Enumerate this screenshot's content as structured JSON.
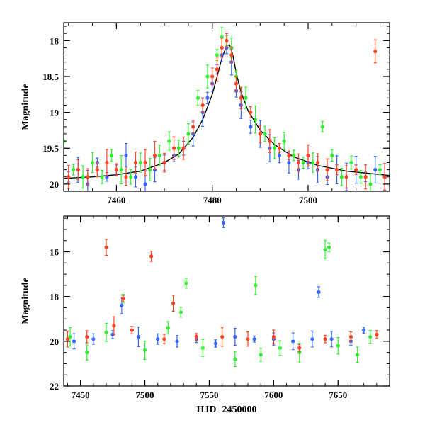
{
  "chart_data": [
    {
      "type": "scatter",
      "title": "",
      "xlabel": "",
      "ylabel": "Magnitude",
      "xlim": [
        7449,
        7517
      ],
      "ylim": [
        20.1,
        17.75
      ],
      "y_inverted": true,
      "xticks_labeled": [
        7460,
        7480,
        7500
      ],
      "yticks_labeled": [
        18,
        18.5,
        19,
        19.5,
        20
      ],
      "series": [
        {
          "color": "#3366ff",
          "points": [
            [
              7450,
              19.9
            ],
            [
              7452,
              19.8
            ],
            [
              7454,
              20.0
            ],
            [
              7456,
              19.7
            ],
            [
              7458,
              19.9
            ],
            [
              7460,
              19.8
            ],
            [
              7462,
              19.6
            ],
            [
              7464,
              19.9
            ],
            [
              7466,
              20.0
            ],
            [
              7468,
              19.8
            ],
            [
              7470,
              19.7
            ],
            [
              7472,
              19.6
            ],
            [
              7474,
              19.5
            ],
            [
              7476,
              19.3
            ],
            [
              7478,
              19.0
            ],
            [
              7479,
              18.8
            ],
            [
              7480,
              18.6
            ],
            [
              7481,
              18.4
            ],
            [
              7482,
              18.2
            ],
            [
              7483,
              18.1
            ],
            [
              7484,
              18.3
            ],
            [
              7485,
              18.7
            ],
            [
              7486,
              18.9
            ],
            [
              7488,
              19.2
            ],
            [
              7490,
              19.3
            ],
            [
              7492,
              19.5
            ],
            [
              7494,
              19.6
            ],
            [
              7496,
              19.7
            ],
            [
              7498,
              19.8
            ],
            [
              7500,
              19.7
            ],
            [
              7502,
              19.8
            ],
            [
              7504,
              19.9
            ],
            [
              7506,
              19.8
            ],
            [
              7508,
              19.9
            ],
            [
              7510,
              19.8
            ],
            [
              7512,
              19.9
            ],
            [
              7514,
              19.8
            ],
            [
              7516,
              19.9
            ]
          ]
        },
        {
          "color": "#33ee33",
          "points": [
            [
              7449,
              19.4
            ],
            [
              7451,
              19.8
            ],
            [
              7453,
              19.9
            ],
            [
              7455,
              19.7
            ],
            [
              7457,
              19.9
            ],
            [
              7459,
              19.6
            ],
            [
              7461,
              19.8
            ],
            [
              7463,
              19.9
            ],
            [
              7465,
              19.7
            ],
            [
              7467,
              19.8
            ],
            [
              7469,
              19.6
            ],
            [
              7471,
              19.4
            ],
            [
              7473,
              19.5
            ],
            [
              7475,
              19.3
            ],
            [
              7477,
              18.8
            ],
            [
              7479,
              18.5
            ],
            [
              7481,
              18.2
            ],
            [
              7482,
              17.95
            ],
            [
              7483,
              18.0
            ],
            [
              7484,
              18.1
            ],
            [
              7485,
              18.5
            ],
            [
              7487,
              18.8
            ],
            [
              7489,
              19.1
            ],
            [
              7491,
              19.3
            ],
            [
              7493,
              19.5
            ],
            [
              7495,
              19.4
            ],
            [
              7497,
              19.6
            ],
            [
              7499,
              19.7
            ],
            [
              7501,
              19.7
            ],
            [
              7503,
              19.2
            ],
            [
              7505,
              19.6
            ],
            [
              7507,
              19.9
            ],
            [
              7509,
              19.7
            ],
            [
              7511,
              19.9
            ],
            [
              7513,
              20.0
            ],
            [
              7515,
              19.8
            ]
          ]
        },
        {
          "color": "#ff4422",
          "points": [
            [
              7450,
              19.9
            ],
            [
              7452,
              19.8
            ],
            [
              7454,
              19.9
            ],
            [
              7456,
              19.8
            ],
            [
              7458,
              19.7
            ],
            [
              7460,
              19.8
            ],
            [
              7462,
              19.9
            ],
            [
              7464,
              19.7
            ],
            [
              7466,
              19.7
            ],
            [
              7468,
              19.6
            ],
            [
              7470,
              19.7
            ],
            [
              7472,
              19.5
            ],
            [
              7474,
              19.5
            ],
            [
              7476,
              19.2
            ],
            [
              7478,
              18.9
            ],
            [
              7480,
              18.5
            ],
            [
              7481,
              18.4
            ],
            [
              7482,
              18.1
            ],
            [
              7483,
              18.0
            ],
            [
              7484,
              18.2
            ],
            [
              7485,
              18.6
            ],
            [
              7486,
              18.8
            ],
            [
              7488,
              19.0
            ],
            [
              7490,
              19.3
            ],
            [
              7492,
              19.4
            ],
            [
              7494,
              19.5
            ],
            [
              7496,
              19.6
            ],
            [
              7498,
              19.7
            ],
            [
              7500,
              19.6
            ],
            [
              7502,
              19.7
            ],
            [
              7504,
              19.8
            ],
            [
              7506,
              19.8
            ],
            [
              7508,
              19.9
            ],
            [
              7510,
              19.8
            ],
            [
              7512,
              19.9
            ],
            [
              7514,
              18.15
            ],
            [
              7516,
              19.9
            ]
          ]
        }
      ],
      "model_curve": [
        [
          7449,
          19.92
        ],
        [
          7455,
          19.9
        ],
        [
          7460,
          19.87
        ],
        [
          7465,
          19.82
        ],
        [
          7470,
          19.7
        ],
        [
          7473,
          19.58
        ],
        [
          7476,
          19.35
        ],
        [
          7478,
          19.1
        ],
        [
          7480,
          18.75
        ],
        [
          7481,
          18.5
        ],
        [
          7482,
          18.25
        ],
        [
          7483,
          18.07
        ],
        [
          7483.6,
          18.06
        ],
        [
          7484.3,
          18.2
        ],
        [
          7485,
          18.45
        ],
        [
          7486,
          18.72
        ],
        [
          7487.5,
          18.98
        ],
        [
          7490,
          19.25
        ],
        [
          7493,
          19.45
        ],
        [
          7497,
          19.62
        ],
        [
          7502,
          19.74
        ],
        [
          7508,
          19.82
        ],
        [
          7517,
          19.88
        ]
      ],
      "model_color": "#000000"
    },
    {
      "type": "scatter",
      "title": "",
      "xlabel": "HJD−2450000",
      "ylabel": "Magnitude",
      "xlim": [
        7437,
        7690
      ],
      "ylim": [
        22,
        14.4
      ],
      "y_inverted": true,
      "xticks_labeled": [
        7450,
        7500,
        7550,
        7600,
        7650
      ],
      "yticks_labeled": [
        16,
        18,
        20,
        22
      ],
      "series": [
        {
          "color": "#3366ff",
          "points": [
            [
              7445,
              20.0
            ],
            [
              7460,
              19.9
            ],
            [
              7475,
              19.7
            ],
            [
              7482,
              18.4
            ],
            [
              7495,
              19.8
            ],
            [
              7510,
              19.9
            ],
            [
              7525,
              20.0
            ],
            [
              7540,
              19.9
            ],
            [
              7555,
              20.1
            ],
            [
              7561,
              14.7
            ],
            [
              7570,
              19.8
            ],
            [
              7585,
              19.9
            ],
            [
              7600,
              19.9
            ],
            [
              7615,
              20.0
            ],
            [
              7630,
              19.9
            ],
            [
              7635,
              17.8
            ],
            [
              7645,
              19.9
            ],
            [
              7660,
              20.0
            ],
            [
              7670,
              19.5
            ]
          ]
        },
        {
          "color": "#33ee33",
          "points": [
            [
              7442,
              19.8
            ],
            [
              7455,
              20.5
            ],
            [
              7470,
              19.6
            ],
            [
              7483,
              18.1
            ],
            [
              7500,
              20.4
            ],
            [
              7518,
              19.4
            ],
            [
              7528,
              18.7
            ],
            [
              7532,
              17.4
            ],
            [
              7545,
              20.3
            ],
            [
              7570,
              20.8
            ],
            [
              7586,
              17.5
            ],
            [
              7590,
              20.6
            ],
            [
              7605,
              20.3
            ],
            [
              7620,
              20.5
            ],
            [
              7640,
              15.9
            ],
            [
              7643,
              15.8
            ],
            [
              7650,
              20.2
            ],
            [
              7665,
              20.6
            ],
            [
              7675,
              19.8
            ]
          ]
        },
        {
          "color": "#ff4422",
          "points": [
            [
              7440,
              19.9
            ],
            [
              7455,
              19.8
            ],
            [
              7470,
              15.8
            ],
            [
              7476,
              19.3
            ],
            [
              7483,
              18.1
            ],
            [
              7490,
              19.5
            ],
            [
              7505,
              16.2
            ],
            [
              7515,
              19.9
            ],
            [
              7522,
              18.3
            ],
            [
              7540,
              19.8
            ],
            [
              7560,
              19.8
            ],
            [
              7580,
              19.9
            ],
            [
              7600,
              19.8
            ],
            [
              7620,
              20.3
            ],
            [
              7640,
              19.9
            ],
            [
              7660,
              19.8
            ],
            [
              7680,
              19.7
            ]
          ]
        }
      ]
    }
  ]
}
